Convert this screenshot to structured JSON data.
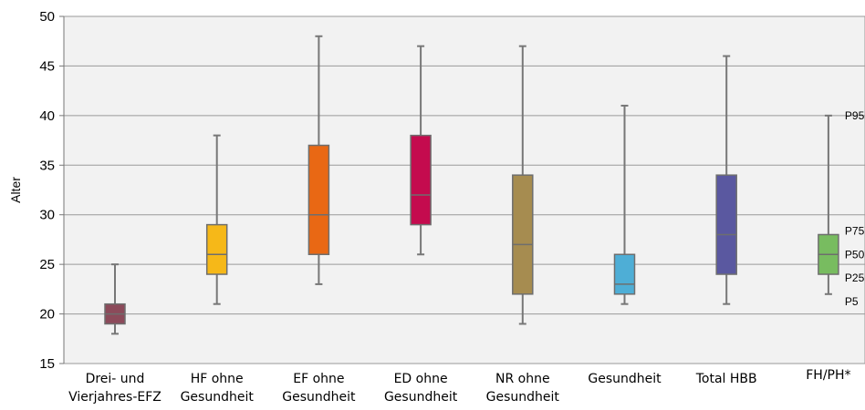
{
  "chart_data": {
    "type": "box",
    "title": "",
    "ylabel": "Alter",
    "ylim": [
      15,
      50
    ],
    "yticks": [
      15,
      20,
      25,
      30,
      35,
      40,
      45,
      50
    ],
    "grid": true,
    "categories": [
      [
        "Drei- und",
        "Vierjahres-EFZ"
      ],
      [
        "HF ohne",
        "Gesundheit"
      ],
      [
        "EF ohne",
        "Gesundheit"
      ],
      [
        "ED ohne",
        "Gesundheit"
      ],
      [
        "NR  ohne",
        "Gesundheit"
      ],
      [
        "Gesundheit"
      ],
      [
        "Total HBB"
      ],
      [
        "FH/PH*"
      ]
    ],
    "boxes": [
      {
        "p5": 18,
        "p25": 19,
        "p50": 20,
        "p75": 21,
        "p95": 25,
        "color": "#8c4a5a"
      },
      {
        "p5": 21,
        "p25": 24,
        "p50": 26,
        "p75": 29,
        "p95": 38,
        "color": "#f6b818"
      },
      {
        "p5": 23,
        "p25": 26,
        "p50": 30,
        "p75": 37,
        "p95": 48,
        "color": "#e96814"
      },
      {
        "p5": 26,
        "p25": 29,
        "p50": 32,
        "p75": 38,
        "p95": 47,
        "color": "#c40b4e"
      },
      {
        "p5": 19,
        "p25": 22,
        "p50": 27,
        "p75": 34,
        "p95": 47,
        "color": "#a68c50"
      },
      {
        "p5": 21,
        "p25": 22,
        "p50": 23,
        "p75": 26,
        "p95": 41,
        "color": "#4eaed6"
      },
      {
        "p5": 21,
        "p25": 24,
        "p50": 28,
        "p75": 34,
        "p95": 46,
        "color": "#5a58a0"
      },
      {
        "p5": 22,
        "p25": 24,
        "p50": 26,
        "p75": 28,
        "p95": 40,
        "color": "#78bc60"
      }
    ],
    "annotations": [
      "P95",
      "P75",
      "P50",
      "P25",
      "P5"
    ]
  }
}
